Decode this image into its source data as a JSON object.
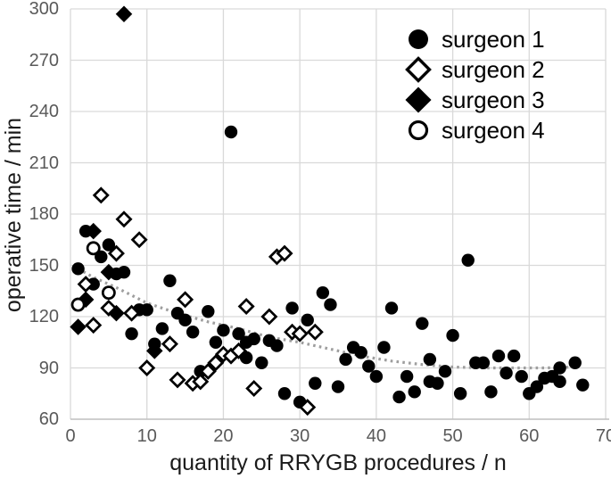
{
  "chart_data": {
    "type": "scatter",
    "title": "",
    "xlabel": "quantity of RRYGB procedures / n",
    "ylabel": "operative time / min",
    "xlim": [
      0,
      70
    ],
    "ylim": [
      60,
      300
    ],
    "x_ticks": [
      0,
      10,
      20,
      30,
      40,
      50,
      60,
      70
    ],
    "y_ticks": [
      300,
      270,
      240,
      210,
      180,
      150,
      120,
      90,
      60
    ],
    "grid": true,
    "legend_position": "top-right-inside",
    "series": [
      {
        "name": "surgeon 1",
        "marker": "filled-circle",
        "points": [
          [
            1,
            148
          ],
          [
            2,
            170
          ],
          [
            3,
            139
          ],
          [
            4,
            155
          ],
          [
            5,
            162
          ],
          [
            6,
            145
          ],
          [
            7,
            146
          ],
          [
            8,
            110
          ],
          [
            9,
            124
          ],
          [
            10,
            124
          ],
          [
            11,
            104
          ],
          [
            12,
            113
          ],
          [
            13,
            141
          ],
          [
            14,
            122
          ],
          [
            15,
            118
          ],
          [
            16,
            111
          ],
          [
            17,
            88
          ],
          [
            18,
            123
          ],
          [
            19,
            105
          ],
          [
            20,
            112
          ],
          [
            21,
            228
          ],
          [
            22,
            110
          ],
          [
            23,
            105
          ],
          [
            23,
            96
          ],
          [
            24,
            107
          ],
          [
            25,
            93
          ],
          [
            26,
            106
          ],
          [
            27,
            103
          ],
          [
            28,
            75
          ],
          [
            29,
            125
          ],
          [
            30,
            70
          ],
          [
            31,
            118
          ],
          [
            32,
            81
          ],
          [
            33,
            134
          ],
          [
            34,
            127
          ],
          [
            35,
            79
          ],
          [
            36,
            95
          ],
          [
            37,
            102
          ],
          [
            38,
            99
          ],
          [
            39,
            91
          ],
          [
            40,
            85
          ],
          [
            41,
            102
          ],
          [
            42,
            125
          ],
          [
            43,
            73
          ],
          [
            44,
            85
          ],
          [
            45,
            76
          ],
          [
            46,
            116
          ],
          [
            47,
            95
          ],
          [
            47,
            82
          ],
          [
            48,
            81
          ],
          [
            49,
            88
          ],
          [
            50,
            109
          ],
          [
            51,
            75
          ],
          [
            52,
            153
          ],
          [
            53,
            93
          ],
          [
            54,
            93
          ],
          [
            55,
            76
          ],
          [
            56,
            97
          ],
          [
            57,
            87
          ],
          [
            58,
            97
          ],
          [
            59,
            85
          ],
          [
            60,
            75
          ],
          [
            61,
            79
          ],
          [
            62,
            84
          ],
          [
            63,
            85
          ],
          [
            64,
            90
          ],
          [
            64,
            82
          ],
          [
            66,
            93
          ],
          [
            67,
            80
          ]
        ]
      },
      {
        "name": "surgeon 2",
        "marker": "open-diamond",
        "points": [
          [
            2,
            139
          ],
          [
            3,
            115
          ],
          [
            4,
            191
          ],
          [
            5,
            125
          ],
          [
            6,
            157
          ],
          [
            7,
            177
          ],
          [
            8,
            122
          ],
          [
            9,
            165
          ],
          [
            10,
            90
          ],
          [
            13,
            104
          ],
          [
            14,
            83
          ],
          [
            15,
            130
          ],
          [
            16,
            81
          ],
          [
            17,
            82
          ],
          [
            18,
            88
          ],
          [
            19,
            93
          ],
          [
            20,
            98
          ],
          [
            21,
            97
          ],
          [
            22,
            100
          ],
          [
            23,
            126
          ],
          [
            24,
            78
          ],
          [
            26,
            120
          ],
          [
            27,
            155
          ],
          [
            28,
            157
          ],
          [
            29,
            111
          ],
          [
            30,
            110
          ],
          [
            31,
            67
          ],
          [
            32,
            111
          ]
        ]
      },
      {
        "name": "surgeon 3",
        "marker": "filled-diamond",
        "points": [
          [
            1,
            114
          ],
          [
            2,
            130
          ],
          [
            3,
            170
          ],
          [
            5,
            146
          ],
          [
            6,
            122
          ],
          [
            7,
            297
          ],
          [
            11,
            100
          ]
        ]
      },
      {
        "name": "surgeon 4",
        "marker": "open-circle",
        "points": [
          [
            1,
            127
          ],
          [
            3,
            160
          ],
          [
            5,
            134
          ]
        ]
      }
    ],
    "trendline": {
      "style": "dotted",
      "color": "#9e9e9e",
      "points": [
        [
          1,
          148
        ],
        [
          3,
          143
        ],
        [
          6,
          137
        ],
        [
          10,
          128
        ],
        [
          14,
          122
        ],
        [
          18,
          117
        ],
        [
          22,
          113
        ],
        [
          26,
          108
        ],
        [
          30,
          105
        ],
        [
          34,
          101
        ],
        [
          38,
          97
        ],
        [
          42,
          94
        ],
        [
          46,
          92
        ],
        [
          50,
          90.5
        ],
        [
          54,
          90
        ],
        [
          58,
          90
        ],
        [
          62,
          90
        ],
        [
          66,
          90.5
        ]
      ]
    }
  },
  "colors": {
    "marker": "#000000",
    "grid": "#d9d9d9",
    "axis": "#bfbfbf",
    "tick_label": "#595959",
    "title": "#1a1a1a",
    "trend": "#9e9e9e",
    "background": "#ffffff"
  }
}
